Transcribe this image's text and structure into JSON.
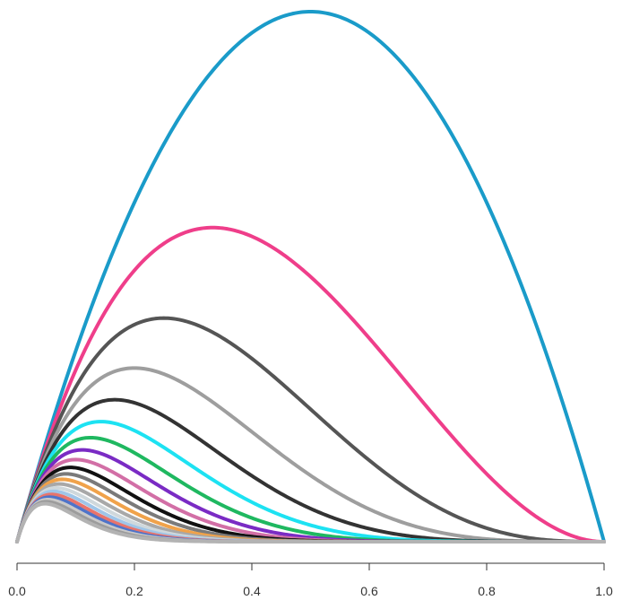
{
  "chart_data": {
    "type": "line",
    "title": "",
    "xlabel": "",
    "ylabel": "",
    "xlim": [
      0,
      1
    ],
    "ylim": [
      0,
      1
    ],
    "grid": false,
    "legend": "none",
    "y_axis_shown": false,
    "x_ticks": [
      0.0,
      0.2,
      0.4,
      0.6,
      0.8,
      1.0
    ],
    "x_tick_labels": [
      "0.0",
      "0.2",
      "0.4",
      "0.6",
      "0.8",
      "1.0"
    ],
    "curve_function": "y = x * (1 - x)^k",
    "series": [
      {
        "k": 1,
        "peak_x": 0.5,
        "peak_y": 0.25,
        "color": "#1a9bc9"
      },
      {
        "k": 2,
        "peak_x": 0.333,
        "peak_y": 0.148,
        "color": "#ef3e8a"
      },
      {
        "k": 3,
        "peak_x": 0.25,
        "peak_y": 0.105,
        "color": "#555555"
      },
      {
        "k": 4,
        "peak_x": 0.2,
        "peak_y": 0.082,
        "color": "#9e9e9e"
      },
      {
        "k": 5,
        "peak_x": 0.167,
        "peak_y": 0.067,
        "color": "#333333"
      },
      {
        "k": 6,
        "peak_x": 0.143,
        "peak_y": 0.057,
        "color": "#1de2f2"
      },
      {
        "k": 7,
        "peak_x": 0.125,
        "peak_y": 0.049,
        "color": "#1fb860"
      },
      {
        "k": 8,
        "peak_x": 0.111,
        "peak_y": 0.044,
        "color": "#7a2bc4"
      },
      {
        "k": 9,
        "peak_x": 0.1,
        "peak_y": 0.039,
        "color": "#d26fa6"
      },
      {
        "k": 10,
        "peak_x": 0.091,
        "peak_y": 0.035,
        "color": "#111111"
      },
      {
        "k": 11,
        "peak_x": 0.083,
        "peak_y": 0.032,
        "color": "#7a7a7a"
      },
      {
        "k": 12,
        "peak_x": 0.077,
        "peak_y": 0.03,
        "color": "#f0a24a"
      },
      {
        "k": 13,
        "peak_x": 0.071,
        "peak_y": 0.028,
        "color": "#a8a8a8"
      },
      {
        "k": 14,
        "peak_x": 0.067,
        "peak_y": 0.026,
        "color": "#cfd8dc"
      },
      {
        "k": 15,
        "peak_x": 0.063,
        "peak_y": 0.024,
        "color": "#9fc5e8"
      },
      {
        "k": 16,
        "peak_x": 0.059,
        "peak_y": 0.023,
        "color": "#e8746b"
      },
      {
        "k": 17,
        "peak_x": 0.056,
        "peak_y": 0.021,
        "color": "#4e73c9"
      },
      {
        "k": 18,
        "peak_x": 0.053,
        "peak_y": 0.02,
        "color": "#c9c9c9"
      },
      {
        "k": 19,
        "peak_x": 0.05,
        "peak_y": 0.019,
        "color": "#9c9c9c"
      },
      {
        "k": 20,
        "peak_x": 0.048,
        "peak_y": 0.018,
        "color": "#b3b3b3"
      }
    ]
  }
}
